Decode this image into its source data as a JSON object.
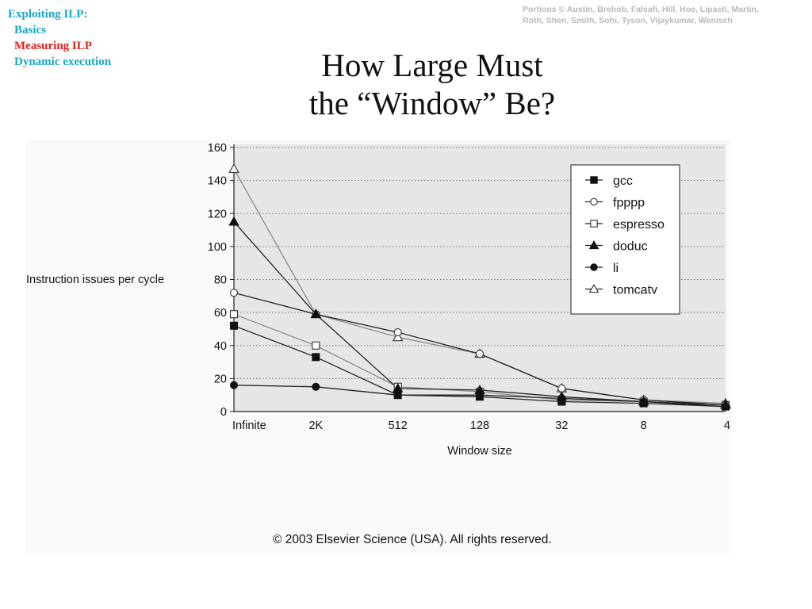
{
  "nav": {
    "items": [
      {
        "label": "Exploiting ILP:",
        "color": "#1aa6c8",
        "indent": false
      },
      {
        "label": "Basics",
        "color": "#1aa6c8",
        "indent": true
      },
      {
        "label": "Measuring ILP",
        "color": "#e0201a",
        "indent": true
      },
      {
        "label": "Dynamic execution",
        "color": "#1aa6c8",
        "indent": true
      }
    ]
  },
  "credit": {
    "line1": "Portions © Austin, Brehob, Falsafi, Hill, Hoe,  Lipasti, Martin,",
    "line2": "Roth, Shen, Smith, Sohi, Tyson, Vijaykumar, Wenisch"
  },
  "slide": {
    "title_line1": "How Large Must",
    "title_line2": "the “Window” Be?"
  },
  "figure": {
    "copyright": "© 2003 Elsevier Science (USA). All rights reserved."
  },
  "chart_data": {
    "type": "line",
    "title": "",
    "xlabel": "Window size",
    "ylabel": "Instruction issues per cycle",
    "categories": [
      "Infinite",
      "2K",
      "512",
      "128",
      "32",
      "8",
      "4"
    ],
    "ylim": [
      0,
      160
    ],
    "yticks": [
      0,
      20,
      40,
      60,
      80,
      100,
      120,
      140,
      160
    ],
    "grid": "horizontal dotted",
    "legend_position": "top-right",
    "plot_background": "#e6e6e6",
    "series": [
      {
        "name": "gcc",
        "marker": "filled-square",
        "line": "dark",
        "values": [
          52,
          33,
          10,
          9,
          6,
          5,
          3
        ]
      },
      {
        "name": "fpppp",
        "marker": "open-circle",
        "line": "dark",
        "values": [
          72,
          59,
          48,
          35,
          14,
          7,
          4
        ]
      },
      {
        "name": "espresso",
        "marker": "open-square",
        "line": "gray",
        "values": [
          59,
          40,
          15,
          12,
          7,
          6,
          4
        ]
      },
      {
        "name": "doduc",
        "marker": "filled-triangle",
        "line": "dark",
        "values": [
          115,
          59,
          14,
          13,
          9,
          6,
          4
        ]
      },
      {
        "name": "li",
        "marker": "filled-circle",
        "line": "dark",
        "values": [
          16,
          15,
          10,
          10,
          8,
          6,
          3
        ]
      },
      {
        "name": "tomcatv",
        "marker": "open-triangle",
        "line": "gray",
        "values": [
          147,
          59,
          45,
          35,
          14,
          7,
          5
        ]
      }
    ]
  }
}
